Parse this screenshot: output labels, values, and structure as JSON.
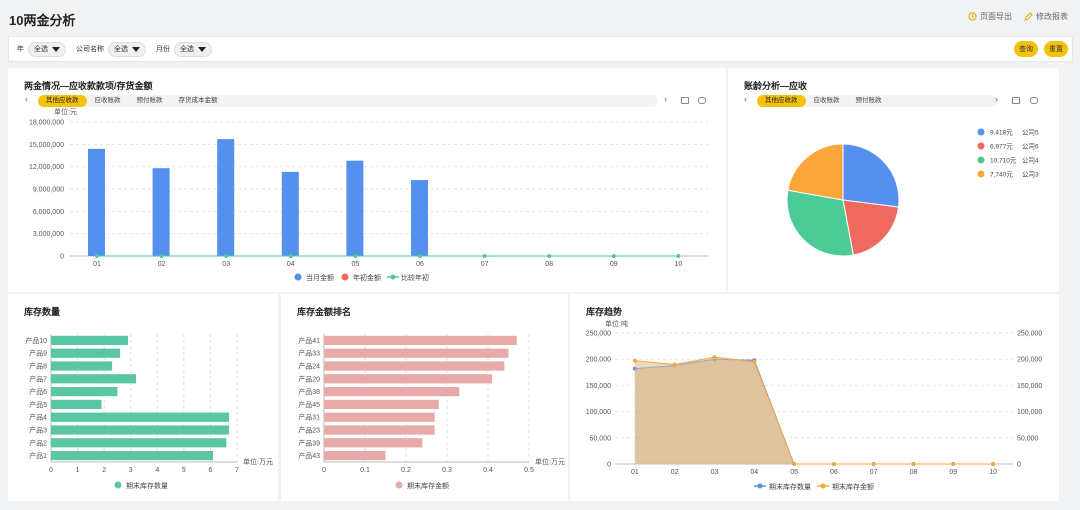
{
  "header": {
    "title": "10两金分析",
    "export_label": "页面导出",
    "edit_label": "修改报表"
  },
  "filters": {
    "year_label": "年",
    "year_value": "全选",
    "company_label": "公司名称",
    "company_value": "全选",
    "month_label": "月份",
    "month_value": "全选",
    "query_label": "查询",
    "reset_label": "重置"
  },
  "panel1": {
    "title": "两金情况—应收款款项/存货金额",
    "tabs": [
      "其他应收款",
      "应收账款",
      "预付账款",
      "存货成本金额"
    ],
    "unit": "单位:元",
    "legend": [
      "当月金额",
      "年初金额",
      "比较年初"
    ]
  },
  "panel2": {
    "title": "账龄分析—应收",
    "tabs": [
      "其他应收款",
      "应收账款",
      "预付账款"
    ],
    "legend_values": [
      "9,418元",
      "6,977元",
      "10,710元",
      "7,740元"
    ],
    "legend_names": [
      "公司5",
      "公司6",
      "公司4",
      "公司3"
    ]
  },
  "panel3": {
    "title": "库存数量",
    "unit": "单位:万元",
    "legend": "期末库存数量"
  },
  "panel4": {
    "title": "库存金额排名",
    "unit": "单位:万元",
    "legend": "期末库存金额"
  },
  "panel5": {
    "title": "库存趋势",
    "unit": "单位:吨",
    "legend": [
      "期末库存数量",
      "期末库存金额"
    ]
  },
  "colors": {
    "blue": "#5590ee",
    "red": "#ee6a5e",
    "green": "#4dcb97",
    "orange": "#fba53a",
    "teal": "#5bc6a4",
    "pink": "#e8a9a9",
    "tan": "#d9bb8f",
    "accent": "#f4c20d"
  },
  "chart_data": [
    {
      "type": "bar",
      "title": "两金情况—应收款款项/存货金额",
      "categories": [
        "01",
        "02",
        "03",
        "04",
        "05",
        "06",
        "07",
        "08",
        "09",
        "10"
      ],
      "y_ticks": [
        "0",
        "3,000,000",
        "6,000,000",
        "9,000,000",
        "12,000,000",
        "15,000,000",
        "18,000,000"
      ],
      "ylim": [
        0,
        18000000
      ],
      "series": [
        {
          "name": "当月金额",
          "type": "bar",
          "values": [
            14400000,
            11800000,
            15700000,
            11300000,
            12800000,
            10200000,
            null,
            null,
            null,
            null
          ]
        },
        {
          "name": "年初金额",
          "type": "bar",
          "values": [
            0,
            0,
            0,
            0,
            0,
            0,
            0,
            0,
            0,
            0
          ]
        },
        {
          "name": "比较年初",
          "type": "line",
          "values": [
            0,
            0,
            0,
            0,
            0,
            0,
            0,
            0,
            0,
            0
          ]
        }
      ]
    },
    {
      "type": "pie",
      "title": "账龄分析—应收",
      "slices": [
        {
          "name": "公司5",
          "value": 9418
        },
        {
          "name": "公司6",
          "value": 6977
        },
        {
          "name": "公司4",
          "value": 10710
        },
        {
          "name": "公司3",
          "value": 7740
        }
      ]
    },
    {
      "type": "bar",
      "title": "库存数量",
      "orientation": "horizontal",
      "categories": [
        "产品10",
        "产品9",
        "产品8",
        "产品7",
        "产品6",
        "产品5",
        "产品4",
        "产品3",
        "产品2",
        "产品1"
      ],
      "values": [
        2.9,
        2.6,
        2.3,
        3.2,
        2.5,
        1.9,
        6.7,
        6.7,
        6.6,
        6.1
      ],
      "x_ticks": [
        "0",
        "1",
        "2",
        "3",
        "4",
        "5",
        "6",
        "7"
      ],
      "xlim": [
        0,
        7
      ],
      "series_name": "期末库存数量"
    },
    {
      "type": "bar",
      "title": "库存金额排名",
      "orientation": "horizontal",
      "categories": [
        "产品41",
        "产品33",
        "产品24",
        "产品20",
        "产品38",
        "产品45",
        "产品31",
        "产品23",
        "产品39",
        "产品43"
      ],
      "values": [
        0.47,
        0.45,
        0.44,
        0.41,
        0.33,
        0.28,
        0.27,
        0.27,
        0.24,
        0.15
      ],
      "x_ticks": [
        "0",
        "0.1",
        "0.2",
        "0.3",
        "0.4",
        "0.5"
      ],
      "xlim": [
        0,
        0.5
      ],
      "series_name": "期末库存金额"
    },
    {
      "type": "area",
      "title": "库存趋势",
      "categories": [
        "01",
        "02",
        "03",
        "04",
        "05",
        "06",
        "07",
        "08",
        "09",
        "10"
      ],
      "y_ticks": [
        "0",
        "50,000",
        "100,000",
        "150,000",
        "200,000",
        "250,000"
      ],
      "ylim": [
        0,
        250000
      ],
      "series": [
        {
          "name": "期末库存数量",
          "values": [
            182000,
            188000,
            200000,
            198000,
            0,
            0,
            0,
            0,
            0,
            0
          ]
        },
        {
          "name": "期末库存金额",
          "values": [
            197000,
            190000,
            204000,
            195000,
            0,
            0,
            0,
            0,
            0,
            0
          ]
        }
      ]
    }
  ]
}
